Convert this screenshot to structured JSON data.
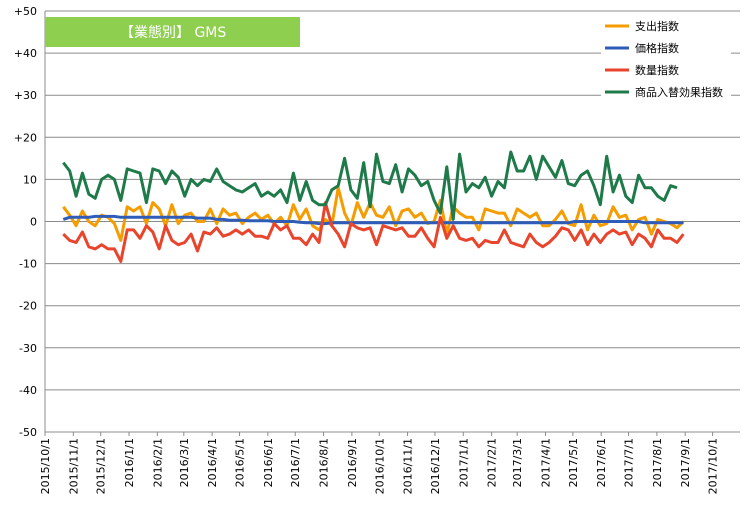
{
  "chart_data": {
    "type": "line",
    "title": "【業態別】 GMS",
    "title_bg_color": "#8fcf4f",
    "ylim": [
      -50,
      50
    ],
    "y_ticks": [
      50,
      40,
      30,
      20,
      10,
      0,
      -10,
      -20,
      -30,
      -40,
      -50
    ],
    "y_tick_labels": [
      "+50",
      "+40",
      "+30",
      "+20",
      "10",
      "0",
      "-10",
      "-20",
      "-30",
      "-40",
      "-50"
    ],
    "x_start": "2015-10-01",
    "x_end": "2017-10-31",
    "x_ticks": [
      "2015/10/1",
      "2015/11/1",
      "2015/12/1",
      "2016/1/1",
      "2016/2/1",
      "2016/3/1",
      "2016/4/1",
      "2016/5/1",
      "2016/6/1",
      "2016/7/1",
      "2016/8/1",
      "2016/9/1",
      "2016/10/1",
      "2016/11/1",
      "2016/12/1",
      "2017/1/1",
      "2017/2/1",
      "2017/3/1",
      "2017/4/1",
      "2017/5/1",
      "2017/6/1",
      "2017/7/1",
      "2017/8/1",
      "2017/9/1",
      "2017/10/1"
    ],
    "grid": true,
    "legend_position": "top-right",
    "series": [
      {
        "name": "支出指数",
        "color": "#f59c00",
        "values": [
          3.5,
          1.5,
          -1,
          2.5,
          0,
          -1,
          1.5,
          1,
          -0.5,
          -4.5,
          3.5,
          2.5,
          3.5,
          -0.5,
          4.5,
          3,
          -1,
          4,
          -0.5,
          1.5,
          2,
          0,
          0,
          3,
          -0.5,
          3,
          1.5,
          2,
          -0.5,
          1,
          2,
          0.5,
          1.5,
          -0.5,
          1,
          -1,
          4,
          0.5,
          3,
          -1,
          -2,
          0.5,
          -1,
          8,
          2,
          -1,
          4.5,
          1,
          4.5,
          1.5,
          1,
          3.5,
          -1,
          2.5,
          3,
          1,
          2,
          -0.5,
          0,
          5,
          -3,
          3.5,
          2,
          1,
          1,
          -2,
          3,
          2.5,
          2,
          2,
          -1,
          3,
          2,
          1,
          2,
          -1,
          -1,
          0.5,
          2.5,
          -0.5,
          -1,
          4,
          -2,
          1.5,
          -1,
          -0.5,
          3.5,
          1,
          1.5,
          -2,
          0.5,
          1,
          -3,
          0.5,
          0,
          -0.5,
          -1.5,
          0
        ]
      },
      {
        "name": "価格指数",
        "color": "#2e5cb8",
        "values": [
          0.5,
          1,
          1,
          1,
          1,
          1.2,
          1.2,
          1.2,
          1.2,
          1,
          1,
          1,
          1,
          1,
          1,
          1,
          1,
          1,
          1,
          1,
          1,
          0.8,
          0.8,
          0.8,
          0.5,
          0.5,
          0.3,
          0.3,
          0.3,
          0.2,
          0.2,
          0.2,
          0.2,
          0,
          0,
          0,
          0,
          -0.2,
          -0.3,
          -0.3,
          -0.5,
          -0.5,
          -0.3,
          -0.3,
          -0.3,
          -0.3,
          -0.3,
          -0.3,
          -0.3,
          -0.3,
          -0.3,
          -0.3,
          -0.3,
          -0.3,
          -0.3,
          -0.3,
          -0.3,
          -0.3,
          -0.3,
          -0.3,
          -0.3,
          -0.3,
          -0.3,
          -0.3,
          -0.3,
          -0.3,
          -0.3,
          -0.3,
          -0.3,
          -0.3,
          -0.3,
          -0.3,
          -0.3,
          -0.3,
          -0.3,
          -0.3,
          -0.3,
          -0.3,
          -0.3,
          -0.3,
          0,
          0,
          0,
          0,
          0,
          0,
          0,
          0,
          0,
          0,
          0,
          -0.3,
          -0.3,
          -0.3,
          -0.3,
          -0.3,
          -0.3,
          -0.3
        ]
      },
      {
        "name": "数量指数",
        "color": "#e8452c",
        "values": [
          -3,
          -4.5,
          -5,
          -2.5,
          -6,
          -6.5,
          -5.5,
          -6.5,
          -6.5,
          -9.5,
          -2,
          -2,
          -4,
          -1,
          -2.5,
          -6.5,
          -1,
          -4.5,
          -5.5,
          -5,
          -3,
          -7,
          -2.5,
          -3,
          -1.5,
          -3.5,
          -3,
          -2,
          -3,
          -2,
          -3.5,
          -3.5,
          -4,
          -0.5,
          -2,
          -1,
          -4,
          -4,
          -5.5,
          -3,
          -5,
          4.5,
          -1,
          -3,
          -6,
          -0.5,
          -1.5,
          -2,
          -1.5,
          -5.5,
          -1,
          -1.5,
          -2,
          -1.5,
          -3.5,
          -3.5,
          -1.5,
          -4,
          -6,
          1,
          -4,
          -1,
          -4,
          -4.5,
          -4,
          -6,
          -4.5,
          -5,
          -5,
          -2,
          -5,
          -5.5,
          -6,
          -3,
          -5,
          -6,
          -5,
          -3.5,
          -1.5,
          -2,
          -4.5,
          -2,
          -5.5,
          -3,
          -5,
          -3,
          -2,
          -3,
          -2.5,
          -5.5,
          -3,
          -4,
          -6,
          -2,
          -4,
          -4,
          -5,
          -3
        ]
      },
      {
        "name": "商品入替効果指数",
        "color": "#1f7a4a",
        "values": [
          14,
          12,
          6,
          11.5,
          6.5,
          5.5,
          10,
          11,
          10,
          5,
          12.5,
          12,
          11.5,
          4.5,
          12.5,
          12,
          9,
          12,
          10.5,
          6,
          10,
          8.5,
          10,
          9.5,
          12.5,
          9.5,
          8.5,
          7.5,
          7,
          8,
          9,
          6,
          7,
          6,
          7.5,
          4.5,
          11.5,
          5,
          9.5,
          5,
          4,
          4,
          7.5,
          8.5,
          15,
          7.5,
          5.5,
          14,
          3.5,
          16,
          9.5,
          9,
          13.5,
          7,
          12.5,
          11,
          8.5,
          9.5,
          5,
          2,
          13,
          0.5,
          16,
          7,
          9,
          8,
          10.5,
          6,
          9.5,
          8,
          16.5,
          12,
          12,
          15.5,
          10,
          15.5,
          13,
          10.5,
          14.5,
          9,
          8.5,
          11,
          12,
          8.5,
          4,
          15.5,
          7,
          11,
          6,
          4.5,
          11,
          8,
          8,
          6,
          5,
          8.5,
          8
        ]
      }
    ]
  }
}
